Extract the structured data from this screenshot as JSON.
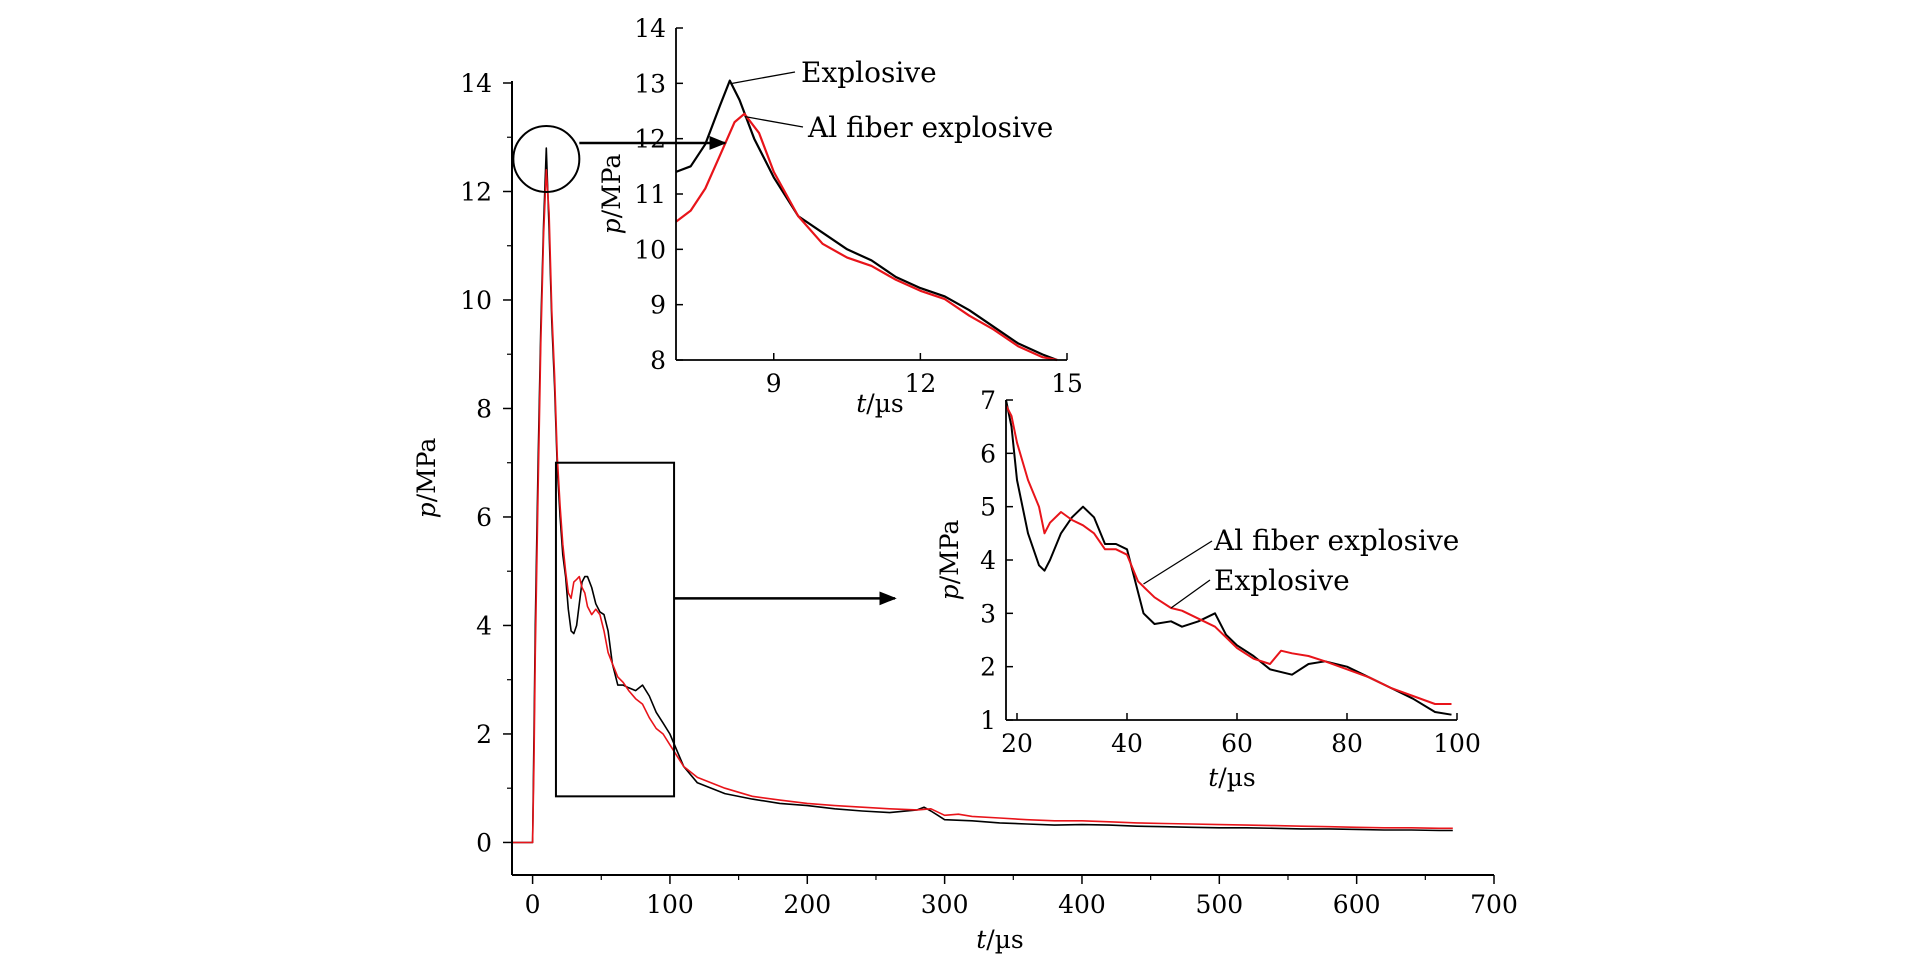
{
  "chart_data": [
    {
      "id": "main",
      "type": "line",
      "title": "",
      "xlabel_var": "t",
      "xlabel_unit": "/µs",
      "ylabel_var": "p",
      "ylabel_unit": "/MPa",
      "xlim": [
        -15,
        700
      ],
      "ylim": [
        -0.6,
        14
      ],
      "xticks": [
        "0",
        "100",
        "200",
        "300",
        "400",
        "500",
        "600",
        "700"
      ],
      "yticks": [
        "0",
        "2",
        "4",
        "6",
        "8",
        "10",
        "12",
        "14"
      ],
      "series": [
        {
          "color": "#000000",
          "x": [
            -15,
            0,
            1,
            2,
            4,
            6,
            8,
            10,
            12,
            14,
            16,
            18,
            20,
            22,
            24,
            26,
            28,
            30,
            32,
            34,
            36,
            38,
            40,
            43,
            46,
            49,
            52,
            55,
            58,
            62,
            66,
            70,
            75,
            80,
            85,
            90,
            95,
            100,
            110,
            120,
            140,
            160,
            180,
            200,
            220,
            240,
            260,
            280,
            285,
            290,
            295,
            300,
            320,
            340,
            360,
            380,
            400,
            420,
            440,
            460,
            480,
            500,
            520,
            540,
            560,
            580,
            600,
            620,
            640,
            660,
            670
          ],
          "y": [
            0,
            0,
            2,
            4,
            7,
            9.5,
            11.4,
            12.8,
            11.3,
            9.6,
            8.4,
            6.9,
            6.0,
            5.3,
            4.9,
            4.3,
            3.9,
            3.85,
            4.0,
            4.4,
            4.8,
            4.9,
            4.9,
            4.7,
            4.4,
            4.25,
            4.2,
            3.9,
            3.3,
            2.9,
            2.9,
            2.85,
            2.8,
            2.9,
            2.7,
            2.4,
            2.2,
            2.0,
            1.4,
            1.1,
            0.9,
            0.8,
            0.72,
            0.68,
            0.62,
            0.58,
            0.55,
            0.6,
            0.65,
            0.58,
            0.5,
            0.42,
            0.4,
            0.36,
            0.34,
            0.32,
            0.33,
            0.32,
            0.3,
            0.29,
            0.28,
            0.27,
            0.27,
            0.26,
            0.25,
            0.25,
            0.24,
            0.23,
            0.23,
            0.22,
            0.22
          ]
        },
        {
          "color": "#e8141a",
          "x": [
            -15,
            0,
            1,
            2,
            4,
            6,
            8,
            10,
            12,
            14,
            16,
            18,
            20,
            22,
            24,
            26,
            28,
            30,
            32,
            34,
            36,
            38,
            40,
            43,
            46,
            49,
            52,
            55,
            58,
            62,
            66,
            70,
            75,
            80,
            85,
            90,
            95,
            100,
            110,
            120,
            140,
            160,
            180,
            200,
            220,
            240,
            260,
            280,
            290,
            300,
            310,
            320,
            340,
            360,
            380,
            400,
            420,
            440,
            460,
            480,
            500,
            520,
            540,
            560,
            580,
            600,
            620,
            640,
            660,
            670
          ],
          "y": [
            0,
            0,
            1.5,
            3.5,
            6.5,
            9.2,
            11.2,
            12.4,
            11.6,
            9.8,
            8.6,
            7.1,
            6.2,
            5.5,
            5.0,
            4.6,
            4.5,
            4.8,
            4.85,
            4.9,
            4.7,
            4.6,
            4.35,
            4.2,
            4.3,
            4.2,
            3.9,
            3.5,
            3.3,
            3.05,
            2.95,
            2.8,
            2.65,
            2.55,
            2.3,
            2.1,
            2.0,
            1.8,
            1.4,
            1.2,
            1.0,
            0.85,
            0.78,
            0.72,
            0.68,
            0.65,
            0.62,
            0.6,
            0.62,
            0.5,
            0.52,
            0.48,
            0.45,
            0.42,
            0.4,
            0.4,
            0.38,
            0.36,
            0.35,
            0.34,
            0.33,
            0.32,
            0.31,
            0.3,
            0.29,
            0.28,
            0.27,
            0.27,
            0.26,
            0.26
          ]
        }
      ]
    },
    {
      "id": "inset_peak",
      "type": "line",
      "title": "",
      "xlabel_var": "t",
      "xlabel_unit": "/µs",
      "ylabel_var": "p",
      "ylabel_unit": "/MPa",
      "xlim": [
        7,
        15
      ],
      "ylim": [
        8,
        14
      ],
      "xticks": [
        "9",
        "12",
        "15"
      ],
      "yticks": [
        "8",
        "9",
        "10",
        "11",
        "12",
        "13",
        "14"
      ],
      "series": [
        {
          "name": "Explosive",
          "color": "#000000",
          "x": [
            7,
            7.3,
            7.6,
            7.9,
            8.1,
            8.3,
            8.6,
            9.0,
            9.5,
            10.0,
            10.5,
            11.0,
            11.5,
            12.0,
            12.5,
            13.0,
            13.5,
            14.0,
            14.5,
            14.8
          ],
          "y": [
            11.4,
            11.5,
            11.9,
            12.6,
            13.05,
            12.7,
            12.0,
            11.3,
            10.6,
            10.3,
            10.0,
            9.8,
            9.5,
            9.3,
            9.15,
            8.9,
            8.6,
            8.3,
            8.1,
            8.0
          ]
        },
        {
          "name": "Al fiber explosive",
          "color": "#e8141a",
          "x": [
            7,
            7.3,
            7.6,
            7.9,
            8.2,
            8.4,
            8.7,
            9.0,
            9.5,
            10.0,
            10.5,
            11.0,
            11.5,
            12.0,
            12.5,
            13.0,
            13.5,
            14.0,
            14.5,
            14.8
          ],
          "y": [
            10.5,
            10.7,
            11.1,
            11.7,
            12.3,
            12.45,
            12.1,
            11.4,
            10.6,
            10.1,
            9.85,
            9.7,
            9.45,
            9.25,
            9.1,
            8.8,
            8.55,
            8.25,
            8.05,
            8.0
          ]
        }
      ]
    },
    {
      "id": "inset_decay",
      "type": "line",
      "title": "",
      "xlabel_var": "t",
      "xlabel_unit": "/µs",
      "ylabel_var": "p",
      "ylabel_unit": "/MPa",
      "xlim": [
        18,
        100
      ],
      "ylim": [
        1,
        7
      ],
      "xticks": [
        "20",
        "40",
        "60",
        "80",
        "100"
      ],
      "yticks": [
        "1",
        "2",
        "3",
        "4",
        "5",
        "6",
        "7"
      ],
      "series": [
        {
          "name": "Explosive",
          "color": "#000000",
          "x": [
            18,
            19,
            20,
            22,
            24,
            25,
            26,
            28,
            30,
            32,
            34,
            36,
            38,
            40,
            42,
            43,
            45,
            48,
            50,
            53,
            56,
            58,
            60,
            63,
            66,
            70,
            73,
            76,
            80,
            84,
            88,
            92,
            96,
            99
          ],
          "y": [
            7,
            6.5,
            5.5,
            4.5,
            3.9,
            3.8,
            4.0,
            4.5,
            4.8,
            5.0,
            4.8,
            4.3,
            4.3,
            4.2,
            3.4,
            3.0,
            2.8,
            2.85,
            2.75,
            2.85,
            3.0,
            2.6,
            2.4,
            2.2,
            1.95,
            1.85,
            2.05,
            2.1,
            2.0,
            1.8,
            1.6,
            1.4,
            1.15,
            1.1
          ]
        },
        {
          "name": "Al fiber explosive",
          "color": "#e8141a",
          "x": [
            18,
            19,
            20,
            22,
            24,
            25,
            26,
            28,
            30,
            32,
            34,
            36,
            38,
            40,
            42,
            43,
            45,
            48,
            50,
            53,
            56,
            58,
            60,
            63,
            66,
            68,
            70,
            73,
            76,
            80,
            84,
            88,
            92,
            96,
            99
          ],
          "y": [
            6.9,
            6.7,
            6.2,
            5.5,
            5.0,
            4.5,
            4.7,
            4.9,
            4.75,
            4.65,
            4.5,
            4.2,
            4.2,
            4.1,
            3.6,
            3.5,
            3.3,
            3.1,
            3.05,
            2.9,
            2.75,
            2.55,
            2.35,
            2.15,
            2.05,
            2.3,
            2.25,
            2.2,
            2.1,
            1.95,
            1.8,
            1.6,
            1.45,
            1.3,
            1.3
          ]
        }
      ]
    }
  ]
}
